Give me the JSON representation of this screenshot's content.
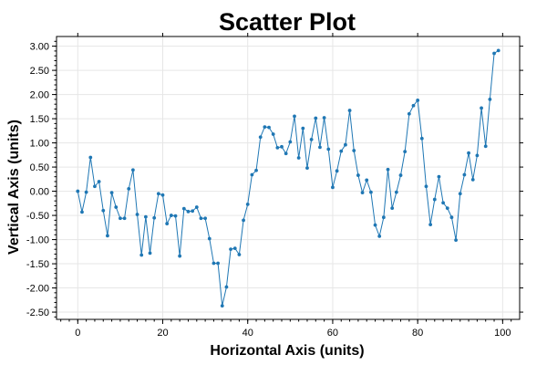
{
  "chart_data": {
    "type": "scatter",
    "title": "Scatter Plot",
    "xlabel": "Horizontal Axis (units)",
    "ylabel": "Vertical Axis (units)",
    "xlim": [
      -5,
      104
    ],
    "ylim": [
      -2.65,
      3.2
    ],
    "grid": true,
    "x_ticks": [
      0,
      20,
      40,
      60,
      80,
      100
    ],
    "x_tick_labels": [
      "0",
      "20",
      "40",
      "60",
      "80",
      "100"
    ],
    "y_ticks": [
      -2.5,
      -2.0,
      -1.5,
      -1.0,
      -0.5,
      0.0,
      0.5,
      1.0,
      1.5,
      2.0,
      2.5,
      3.0
    ],
    "y_tick_labels": [
      "-2.50",
      "-2.00",
      "-1.50",
      "-1.00",
      "-0.50",
      "0.00",
      "0.50",
      "1.00",
      "1.50",
      "2.00",
      "2.50",
      "3.00"
    ],
    "color": "#1f77b4",
    "series": [
      {
        "x": [
          0,
          1,
          2,
          3,
          4,
          5,
          6,
          7,
          8,
          9,
          10,
          11,
          12,
          13,
          14,
          15,
          16,
          17,
          18,
          19,
          20,
          21,
          22,
          23,
          24,
          25,
          26,
          27,
          28,
          29,
          30,
          31,
          32,
          33,
          34,
          35,
          36,
          37,
          38,
          39,
          40,
          41,
          42,
          43,
          44,
          45,
          46,
          47,
          48,
          49,
          50,
          51,
          52,
          53,
          54,
          55,
          56,
          57,
          58,
          59,
          60,
          61,
          62,
          63,
          64,
          65,
          66,
          67,
          68,
          69,
          70,
          71,
          72,
          73,
          74,
          75,
          76,
          77,
          78,
          79,
          80,
          81,
          82,
          83,
          84,
          85,
          86,
          87,
          88,
          89,
          90,
          91,
          92,
          93,
          94,
          95,
          96,
          97,
          98,
          99
        ],
        "y": [
          0.0,
          -0.43,
          -0.02,
          0.7,
          0.1,
          0.2,
          -0.4,
          -0.92,
          -0.03,
          -0.33,
          -0.56,
          -0.56,
          0.05,
          0.44,
          -0.48,
          -1.32,
          -0.53,
          -1.28,
          -0.55,
          -0.05,
          -0.08,
          -0.67,
          -0.5,
          -0.51,
          -1.34,
          -0.36,
          -0.42,
          -0.41,
          -0.33,
          -0.56,
          -0.56,
          -0.98,
          -1.49,
          -1.49,
          -2.37,
          -1.98,
          -1.2,
          -1.18,
          -1.31,
          -0.6,
          -0.27,
          0.34,
          0.43,
          1.12,
          1.33,
          1.32,
          1.18,
          0.9,
          0.92,
          0.78,
          1.02,
          1.55,
          0.69,
          1.3,
          0.48,
          1.07,
          1.51,
          0.91,
          1.52,
          0.87,
          0.08,
          0.42,
          0.83,
          0.96,
          1.67,
          0.84,
          0.33,
          -0.03,
          0.23,
          -0.02,
          -0.7,
          -0.93,
          -0.54,
          0.45,
          -0.35,
          -0.02,
          0.33,
          0.82,
          1.6,
          1.77,
          1.88,
          1.09,
          0.1,
          -0.69,
          -0.17,
          0.3,
          -0.24,
          -0.35,
          -0.54,
          -1.01,
          -0.05,
          0.34,
          0.79,
          0.24,
          0.74,
          1.72,
          0.93,
          1.9,
          2.85,
          2.91
        ]
      }
    ]
  }
}
